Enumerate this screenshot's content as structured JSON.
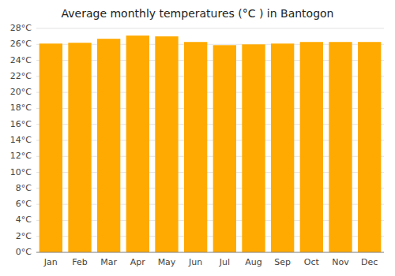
{
  "chart_data": {
    "type": "bar",
    "title": "Average monthly temperatures (°C ) in Bantogon",
    "categories": [
      "Jan",
      "Feb",
      "Mar",
      "Apr",
      "May",
      "Jun",
      "Jul",
      "Aug",
      "Sep",
      "Oct",
      "Nov",
      "Dec"
    ],
    "values": [
      26.1,
      26.2,
      26.7,
      27.1,
      27.0,
      26.3,
      25.9,
      26.0,
      26.1,
      26.3,
      26.3,
      26.3
    ],
    "color": "#FFAA00",
    "ylim": [
      0,
      28
    ],
    "yticks": [
      {
        "value": 0,
        "label": "0°C"
      },
      {
        "value": 2,
        "label": "2°C"
      },
      {
        "value": 4,
        "label": "4°C"
      },
      {
        "value": 6,
        "label": "6°C"
      },
      {
        "value": 8,
        "label": "8°C"
      },
      {
        "value": 10,
        "label": "10°C"
      },
      {
        "value": 12,
        "label": "12°C"
      },
      {
        "value": 14,
        "label": "14°C"
      },
      {
        "value": 16,
        "label": "16°C"
      },
      {
        "value": 18,
        "label": "18°C"
      },
      {
        "value": 20,
        "label": "20°C"
      },
      {
        "value": 22,
        "label": "22°C"
      },
      {
        "value": 24,
        "label": "24°C"
      },
      {
        "value": 26,
        "label": "26°C"
      },
      {
        "value": 28,
        "label": "28°C"
      }
    ],
    "grid": true
  }
}
